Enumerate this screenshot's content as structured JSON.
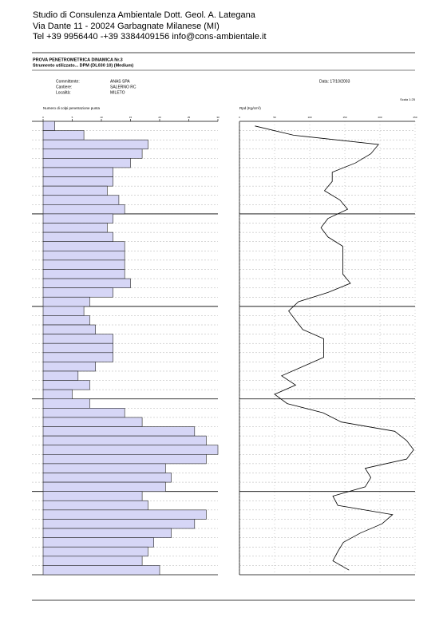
{
  "header": {
    "lines": [
      "Studio di Consulenza Ambientale Dott. Geol. A. Lategana",
      "Via Dante 11 - 20024 Garbagnate Milanese (MI)",
      "Tel +39 9956440 -+39 3384409156  info@cons-ambientale.it"
    ]
  },
  "test": {
    "title": "PROVA PENETROMETRICA DINAMICA Nr.3",
    "instrument": "Strumento utilizzato... DPM (DL030 10) (Medium)",
    "fields": [
      [
        "Committente:",
        "ANAS SPA"
      ],
      [
        "Cantiere:",
        "SALERNO RC"
      ],
      [
        "Località:",
        "MILETO"
      ]
    ],
    "date": "Data: 17/10/2003",
    "scale": "Scala 1:25"
  },
  "chart_data": [
    {
      "type": "hbar",
      "title": "Numero di colpi penetrazione punta",
      "color": "#d6d6f6",
      "values": [
        2,
        7,
        18,
        17,
        15,
        12,
        12,
        11,
        13,
        14,
        12,
        11,
        12,
        14,
        14,
        14,
        14,
        15,
        12,
        8,
        7,
        8,
        9,
        12,
        12,
        12,
        9,
        6,
        8,
        5,
        8,
        14,
        17,
        26,
        28,
        30,
        28,
        21,
        22,
        21,
        17,
        18,
        28,
        26,
        22,
        19,
        18,
        17,
        20
      ],
      "xlim": [
        0,
        30
      ],
      "xticks": [
        0,
        5,
        10,
        15,
        20,
        25,
        30
      ]
    },
    {
      "type": "vline",
      "title": "Rpd (Kg/cm²)",
      "color": "#000000",
      "values": [
        22,
        77,
        198,
        187,
        165,
        132,
        132,
        121,
        143,
        154,
        126,
        116,
        126,
        147,
        147,
        147,
        147,
        158,
        126,
        84,
        70,
        80,
        90,
        120,
        120,
        120,
        90,
        60,
        80,
        50,
        68,
        119,
        145,
        221,
        238,
        248,
        238,
        179,
        187,
        179,
        133,
        140,
        218,
        203,
        172,
        148,
        140,
        133,
        156
      ],
      "xlim": [
        0,
        250
      ],
      "xticks": [
        0,
        50,
        100,
        150,
        200,
        250
      ]
    }
  ]
}
